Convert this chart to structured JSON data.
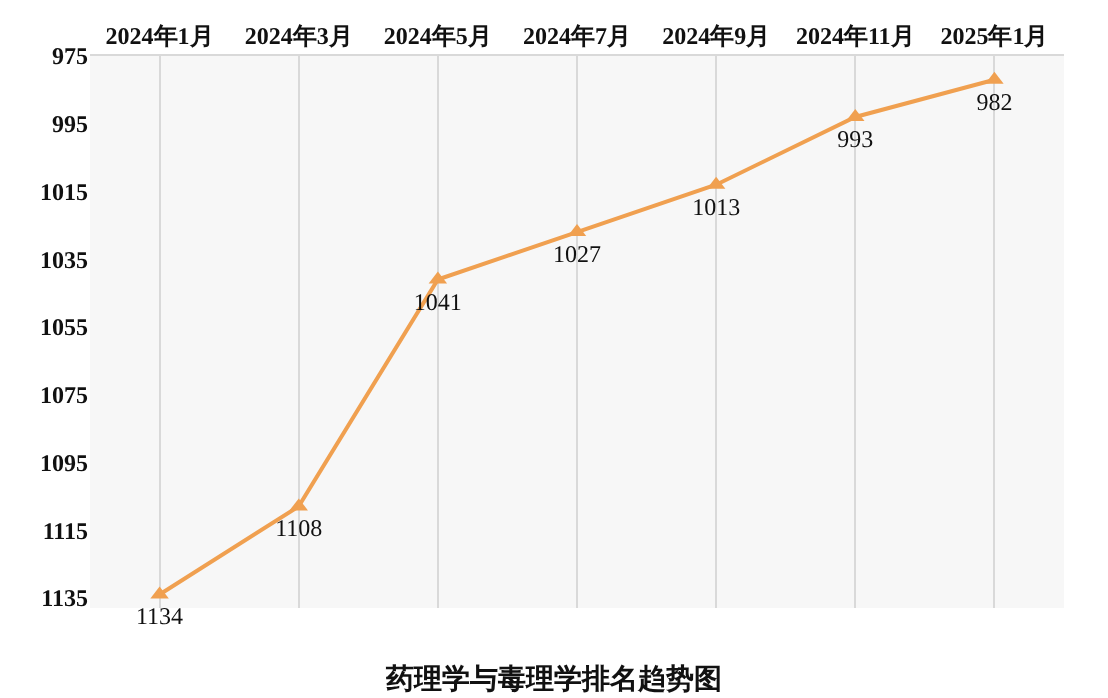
{
  "chart_data": {
    "type": "line",
    "title": "药理学与毒理学排名趋势图",
    "categories": [
      "2024年1月",
      "2024年3月",
      "2024年5月",
      "2024年7月",
      "2024年9月",
      "2024年11月",
      "2025年1月"
    ],
    "series": [
      {
        "color": "#f0a050",
        "values": [
          1134,
          1108,
          1041,
          1027,
          1013,
          993,
          982
        ]
      }
    ],
    "ylim": [
      1138,
      975
    ],
    "yticks": [
      975,
      995,
      1015,
      1035,
      1055,
      1075,
      1095,
      1115,
      1135
    ],
    "grid": "x",
    "marker": "triangle",
    "line_style": "solid",
    "data_labels": true,
    "legend": false
  }
}
